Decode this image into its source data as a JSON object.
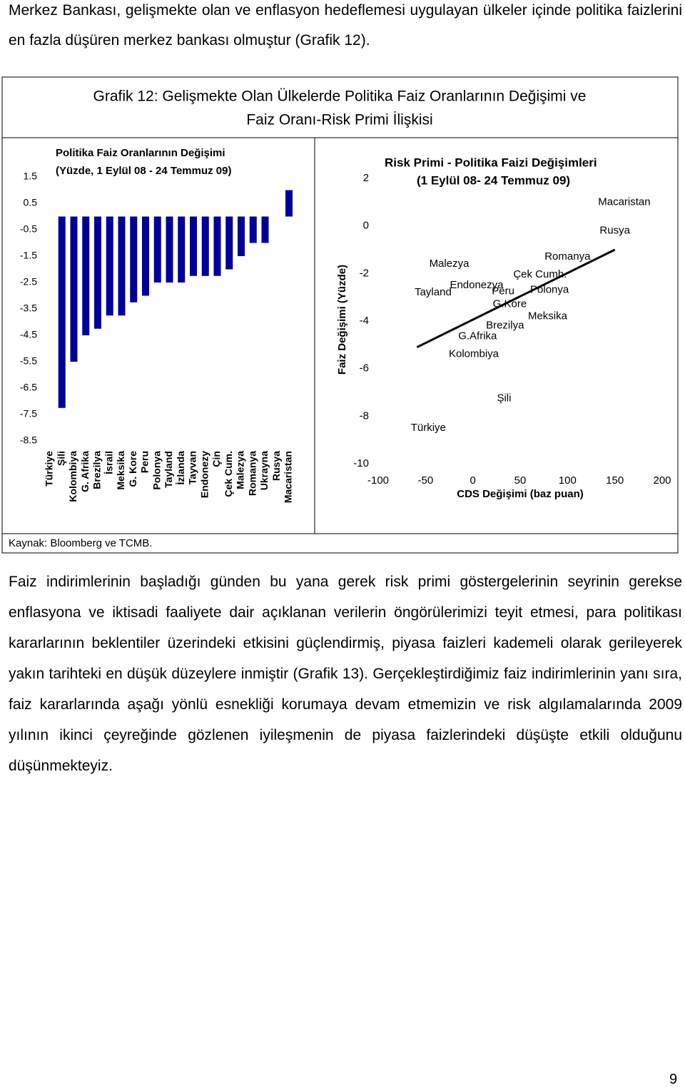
{
  "text_top": "Merkez Bankası, gelişmekte olan ve enflasyon hedeflemesi uygulayan ülkeler içinde politika faizlerini en fazla düşüren merkez bankası olmuştur (Grafik 12).",
  "figure": {
    "title_lines": [
      "Grafik 12: Gelişmekte Olan Ülkelerde Politika Faiz Oranlarının Değişimi ve",
      "Faiz Oranı-Risk Primi İlişkisi"
    ],
    "source": "Kaynak: Bloomberg ve TCMB."
  },
  "chart_data": [
    {
      "type": "bar",
      "title_lines": [
        "Politika Faiz Oranlarının Değişimi",
        "(Yüzde, 1 Eylül 08 - 24 Temmuz 09)"
      ],
      "categories": [
        "Türkiye",
        "Şili",
        "Kolombiya",
        "G. Afrika",
        "Brezilya",
        "İsrail",
        "Meksika",
        "G. Kore",
        "Peru",
        "Polonya",
        "Tayland",
        "İzlanda",
        "Tayvan",
        "Endonezy",
        "Çin",
        "Çek Cum.",
        "Malezya",
        "Romanya",
        "Ukrayna",
        "Rusya",
        "Macaristan"
      ],
      "values": [
        null,
        -7.25,
        -5.5,
        -4.5,
        -4.25,
        -3.75,
        -3.75,
        -3.25,
        -3.0,
        -2.5,
        -2.5,
        -2.5,
        -2.25,
        -2.25,
        -2.25,
        -2.0,
        -1.5,
        -1.0,
        -1.0,
        null,
        1.0
      ],
      "color": "#000099",
      "ylim": [
        -8.5,
        1.5
      ],
      "yticks": [
        1.5,
        0.5,
        -0.5,
        -1.5,
        -2.5,
        -3.5,
        -4.5,
        -5.5,
        -6.5,
        -7.5,
        -8.5
      ]
    },
    {
      "type": "scatter",
      "title_lines": [
        "Risk Primi - Politika Faizi Değişimleri",
        "(1 Eylül 08- 24 Temmuz 09)"
      ],
      "xlabel": "CDS Değişimi (baz puan)",
      "ylabel": "Faiz Değişimi (Yüzde)",
      "labels": [
        "Macaristan",
        "Rusya",
        "Romanya",
        "Malezya",
        "Çek Cumh.",
        "Endonezya",
        "Tayland",
        "Peru",
        "Polonya",
        "G.Kore",
        "Meksika",
        "Brezilya",
        "G.Afrika",
        "Kolombiya",
        "Şili",
        "Türkiye"
      ],
      "x": [
        160,
        150,
        100,
        -25,
        71,
        4,
        -42,
        32,
        81,
        39,
        79,
        34,
        5,
        1,
        33,
        -47
      ],
      "y": [
        1.0,
        -0.2,
        -1.3,
        -1.6,
        -2.05,
        -2.5,
        -2.8,
        -2.75,
        -2.7,
        -3.3,
        -3.8,
        -4.2,
        -4.65,
        -5.4,
        -7.25,
        -8.5
      ],
      "trendline": {
        "x": [
          -59,
          150
        ],
        "y": [
          -5.1,
          -1.0
        ]
      },
      "xlim": [
        -100,
        200
      ],
      "xticks": [
        -100,
        -50,
        0,
        50,
        100,
        150,
        200
      ],
      "ylim": [
        -10,
        2
      ],
      "yticks": [
        2,
        0,
        -2,
        -4,
        -6,
        -8,
        -10
      ]
    }
  ],
  "text_body": "Faiz indirimlerinin başladığı günden bu yana gerek risk primi göstergelerinin seyrinin gerekse enflasyona ve iktisadi faaliyete dair açıklanan verilerin öngörülerimizi teyit etmesi, para politikası kararlarının beklentiler üzerindeki etkisini güçlendirmiş, piyasa faizleri kademeli olarak gerileyerek yakın tarihteki en düşük düzeylere inmiştir (Grafik 13). Gerçekleştirdiğimiz faiz indirimlerinin yanı sıra, faiz kararlarında aşağı yönlü esnekliği korumaya devam etmemizin ve risk algılamalarında 2009 yılının ikinci çeyreğinde gözlenen iyileşmenin de piyasa faizlerindeki düşüşte etkili olduğunu düşünmekteyiz.",
  "page_number": "9"
}
